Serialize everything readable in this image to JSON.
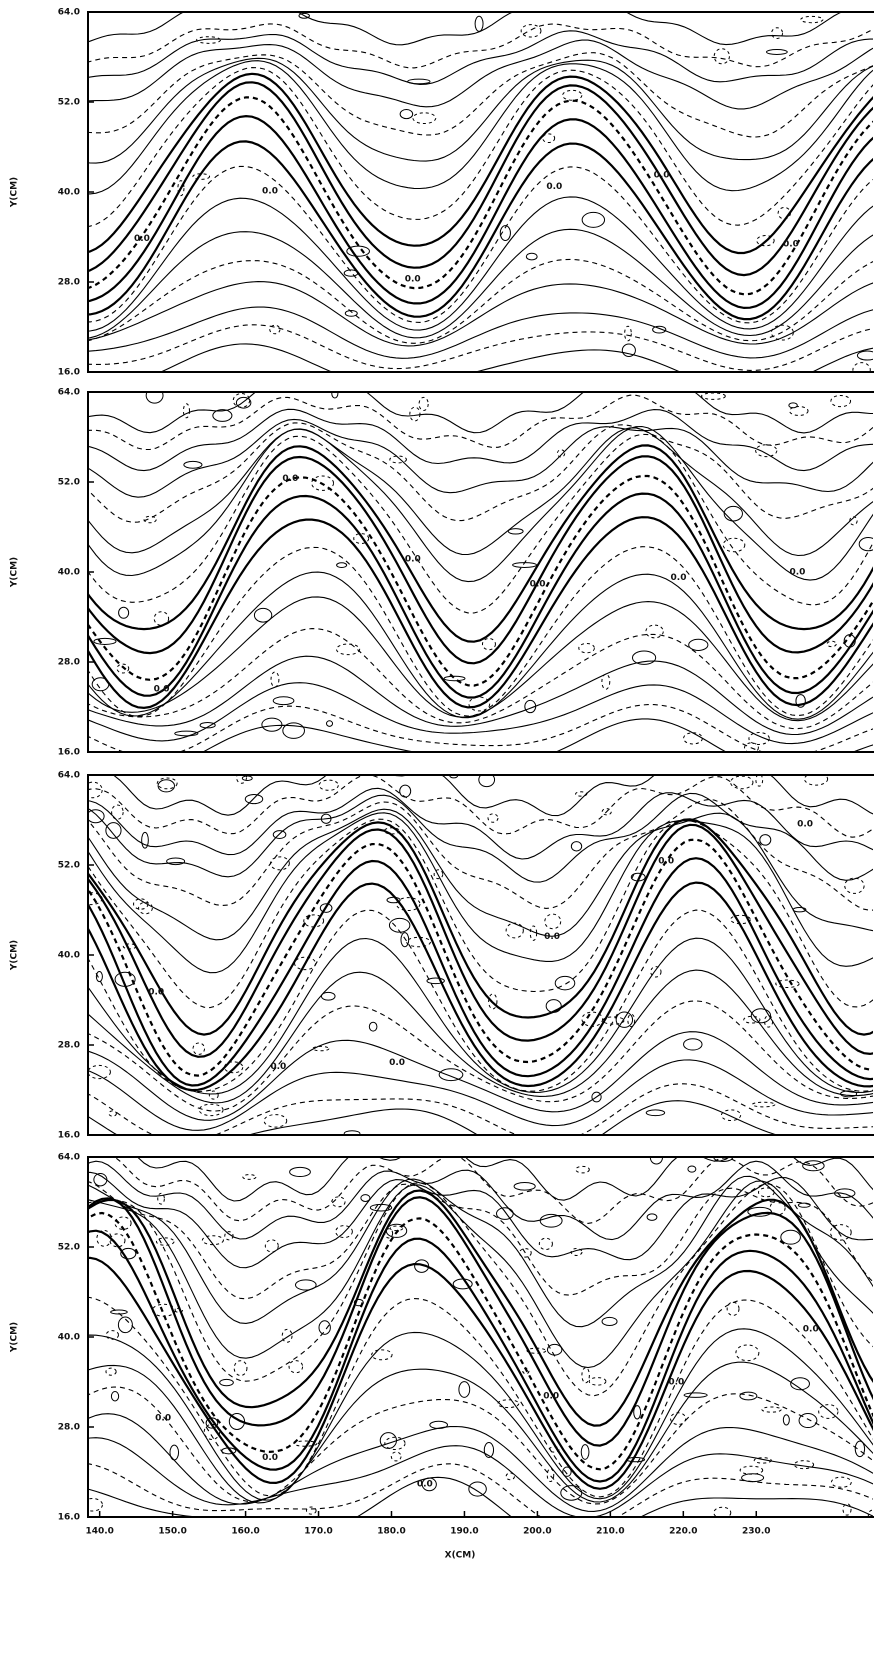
{
  "chart_data": [
    {
      "type": "contour",
      "ylabel": "Y(CM)",
      "contour_label": "0.0",
      "xlim": [
        138.4,
        246
      ],
      "ylim": [
        16,
        64
      ],
      "yticks": [
        {
          "value": 16,
          "label": "16.0"
        },
        {
          "value": 28,
          "label": "28.0"
        },
        {
          "value": 40,
          "label": "40.0"
        },
        {
          "value": 52,
          "label": "52.0"
        },
        {
          "value": 64,
          "label": "64.0"
        }
      ]
    },
    {
      "type": "contour",
      "ylabel": "Y(CM)",
      "contour_label": "0.0",
      "xlim": [
        138.4,
        246
      ],
      "ylim": [
        16,
        64
      ],
      "yticks": [
        {
          "value": 16,
          "label": "16.0"
        },
        {
          "value": 28,
          "label": "28.0"
        },
        {
          "value": 40,
          "label": "40.0"
        },
        {
          "value": 52,
          "label": "52.0"
        },
        {
          "value": 64,
          "label": "64.0"
        }
      ]
    },
    {
      "type": "contour",
      "ylabel": "Y(CM)",
      "contour_label": "0.0",
      "xlim": [
        138.4,
        246
      ],
      "ylim": [
        16,
        64
      ],
      "yticks": [
        {
          "value": 16,
          "label": "16.0"
        },
        {
          "value": 28,
          "label": "28.0"
        },
        {
          "value": 40,
          "label": "40.0"
        },
        {
          "value": 52,
          "label": "52.0"
        },
        {
          "value": 64,
          "label": "64.0"
        }
      ]
    },
    {
      "type": "contour",
      "ylabel": "Y(CM)",
      "xlabel": "X(CM)",
      "contour_label": "0.0",
      "xlim": [
        138.4,
        246
      ],
      "ylim": [
        16,
        64
      ],
      "yticks": [
        {
          "value": 16,
          "label": "16.0"
        },
        {
          "value": 28,
          "label": "28.0"
        },
        {
          "value": 40,
          "label": "40.0"
        },
        {
          "value": 52,
          "label": "52.0"
        },
        {
          "value": 64,
          "label": "64.0"
        }
      ],
      "xticks": [
        {
          "value": 140,
          "label": "140.0"
        },
        {
          "value": 150,
          "label": "150.0"
        },
        {
          "value": 160,
          "label": "160.0"
        },
        {
          "value": 170,
          "label": "170.0"
        },
        {
          "value": 180,
          "label": "180.0"
        },
        {
          "value": 190,
          "label": "190.0"
        },
        {
          "value": 200,
          "label": "200.0"
        },
        {
          "value": 210,
          "label": "210.0"
        },
        {
          "value": 220,
          "label": "220.0"
        },
        {
          "value": 230,
          "label": "230.0"
        }
      ]
    }
  ]
}
